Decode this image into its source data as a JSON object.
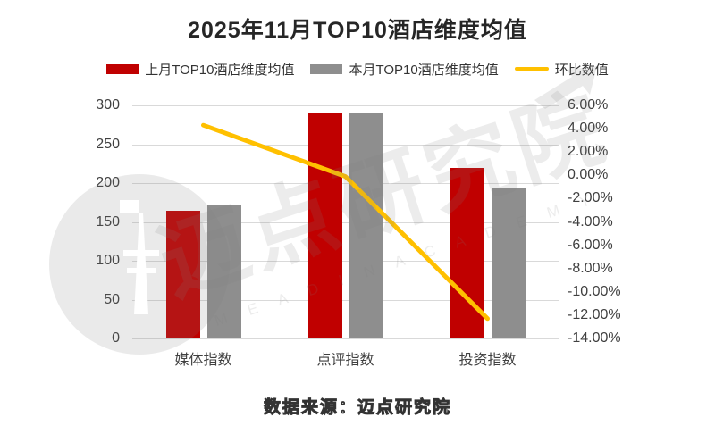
{
  "title": "2025年11月TOP10酒店维度均值",
  "legend": [
    {
      "label": "上月TOP10酒店维度均值",
      "type": "bar",
      "color": "#c00000"
    },
    {
      "label": "本月TOP10酒店维度均值",
      "type": "bar",
      "color": "#8e8e8e"
    },
    {
      "label": "环比数值",
      "type": "line",
      "color": "#ffc000"
    }
  ],
  "source_note": "数据来源：迈点研究院",
  "watermark": {
    "text": "迈点研究院",
    "subtext": "M E A D I N   A C A D E M Y"
  },
  "colors": {
    "last_month_bar": "#c00000",
    "this_month_bar": "#8e8e8e",
    "ratio_line": "#ffc000",
    "gridline": "#d9d9d9",
    "axis_text": "#404040",
    "title_text": "#262626"
  },
  "chart_data": {
    "type": "bar",
    "subtype": "grouped-bars-with-line",
    "title": "2025年11月TOP10酒店维度均值",
    "categories": [
      "媒体指数",
      "点评指数",
      "投资指数"
    ],
    "series": [
      {
        "name": "上月TOP10酒店维度均值",
        "type": "bar",
        "axis": "left",
        "color": "#c00000",
        "values": [
          164,
          291,
          220
        ]
      },
      {
        "name": "本月TOP10酒店维度均值",
        "type": "bar",
        "axis": "left",
        "color": "#8e8e8e",
        "values": [
          171,
          291,
          193
        ]
      },
      {
        "name": "环比数值",
        "type": "line",
        "axis": "right",
        "color": "#ffc000",
        "values": [
          4.3,
          -0.1,
          -12.3
        ]
      }
    ],
    "left_axis": {
      "min": 0,
      "max": 300,
      "step": 50,
      "ticks": [
        "300",
        "250",
        "200",
        "150",
        "100",
        "50",
        "0"
      ]
    },
    "right_axis": {
      "min": -14,
      "max": 6,
      "step": 2,
      "unit": "%",
      "ticks": [
        "6.00%",
        "4.00%",
        "2.00%",
        "0.00%",
        "-2.00%",
        "-4.00%",
        "-6.00%",
        "-8.00%",
        "-10.00%",
        "-12.00%",
        "-14.00%"
      ]
    },
    "grid": true,
    "legend_position": "top",
    "xlabel": "",
    "ylabel": ""
  }
}
